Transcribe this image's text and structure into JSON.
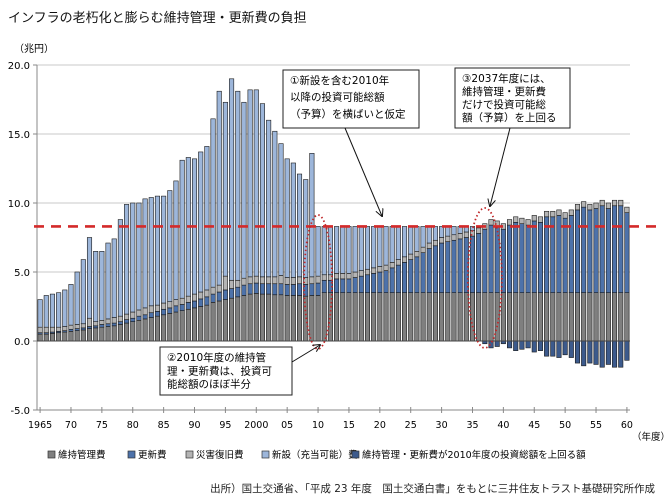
{
  "chart_data": {
    "type": "bar",
    "stacked": true,
    "title": "インフラの老朽化と膨らむ維持管理・更新費の負担",
    "ylabel": "（兆円）",
    "xlabel": "（年度）",
    "ylim": [
      -5,
      20
    ],
    "yticks": [
      "20.0",
      "15.0",
      "10.0",
      "5.0",
      "0.0",
      "-5.0"
    ],
    "ytick_values": [
      20,
      15,
      10,
      5,
      0,
      -5
    ],
    "x_start": 1965,
    "x_end": 2060,
    "xticks": [
      "1965",
      "70",
      "75",
      "80",
      "85",
      "90",
      "95",
      "2000",
      "05",
      "10",
      "15",
      "20",
      "25",
      "30",
      "35",
      "40",
      "45",
      "50",
      "55",
      "60"
    ],
    "grid": true,
    "legend_position": "bottom",
    "budget_line": 8.3,
    "budget_color": "#d42a2a",
    "series": [
      {
        "name": "維持管理費",
        "color": "#7f7f7f",
        "values": [
          0.5,
          0.5,
          0.55,
          0.6,
          0.65,
          0.7,
          0.75,
          0.8,
          0.9,
          0.95,
          1.0,
          1.05,
          1.1,
          1.2,
          1.3,
          1.4,
          1.5,
          1.6,
          1.7,
          1.8,
          1.9,
          2.0,
          2.1,
          2.2,
          2.3,
          2.4,
          2.5,
          2.6,
          2.8,
          2.9,
          3.0,
          3.1,
          3.2,
          3.3,
          3.4,
          3.45,
          3.4,
          3.4,
          3.35,
          3.35,
          3.3,
          3.3,
          3.3,
          3.25,
          3.3,
          3.3,
          3.5,
          3.5,
          3.5,
          3.5,
          3.5,
          3.5,
          3.5,
          3.5,
          3.5,
          3.5,
          3.5,
          3.5,
          3.5,
          3.5,
          3.5,
          3.5,
          3.5,
          3.5,
          3.5,
          3.5,
          3.5,
          3.5,
          3.5,
          3.5,
          3.5,
          3.5,
          3.5,
          3.5,
          3.5,
          3.5,
          3.5,
          3.5,
          3.5,
          3.5,
          3.5,
          3.5,
          3.5,
          3.5,
          3.5,
          3.5,
          3.5,
          3.5,
          3.5,
          3.5,
          3.5,
          3.5,
          3.5,
          3.5,
          3.5,
          3.5
        ]
      },
      {
        "name": "更新費",
        "color": "#4d72aa",
        "values": [
          0.1,
          0.1,
          0.1,
          0.1,
          0.1,
          0.15,
          0.15,
          0.15,
          0.15,
          0.15,
          0.2,
          0.2,
          0.2,
          0.2,
          0.25,
          0.25,
          0.3,
          0.3,
          0.35,
          0.35,
          0.4,
          0.4,
          0.45,
          0.45,
          0.5,
          0.5,
          0.55,
          0.6,
          0.6,
          0.65,
          0.7,
          0.7,
          0.7,
          0.75,
          0.75,
          0.75,
          0.75,
          0.75,
          0.8,
          0.8,
          0.8,
          0.8,
          0.85,
          0.85,
          0.85,
          0.9,
          0.9,
          0.9,
          1.0,
          1.0,
          1.0,
          1.1,
          1.2,
          1.3,
          1.4,
          1.5,
          1.6,
          1.8,
          2.0,
          2.2,
          2.4,
          2.6,
          2.9,
          3.2,
          3.4,
          3.6,
          3.7,
          3.8,
          3.9,
          4.0,
          4.1,
          4.3,
          4.6,
          4.9,
          4.8,
          4.6,
          4.9,
          5.1,
          5.0,
          4.9,
          5.2,
          5.1,
          5.5,
          5.5,
          5.6,
          5.4,
          5.6,
          6.0,
          6.2,
          6.0,
          6.1,
          6.3,
          6.1,
          6.3,
          6.3,
          5.8
        ]
      },
      {
        "name": "災害復旧費",
        "color": "#b4b4b4",
        "values": [
          0.4,
          0.4,
          0.35,
          0.3,
          0.3,
          0.3,
          0.3,
          0.3,
          0.6,
          0.3,
          0.3,
          0.35,
          0.4,
          0.4,
          0.4,
          0.45,
          0.45,
          0.5,
          0.5,
          0.45,
          0.45,
          0.45,
          0.45,
          0.45,
          0.45,
          0.5,
          0.5,
          0.5,
          0.5,
          0.5,
          1.0,
          0.6,
          0.5,
          0.5,
          0.5,
          0.5,
          0.5,
          0.5,
          0.5,
          0.6,
          0.5,
          0.5,
          0.5,
          0.5,
          0.5,
          0.5,
          0.4,
          0.4,
          0.4,
          0.4,
          0.4,
          0.4,
          0.4,
          0.4,
          0.4,
          0.4,
          0.4,
          0.4,
          0.4,
          0.4,
          0.4,
          0.4,
          0.4,
          0.4,
          0.4,
          0.4,
          0.4,
          0.4,
          0.4,
          0.4,
          0.4,
          0.4,
          0.4,
          0.4,
          0.4,
          0.4,
          0.4,
          0.4,
          0.4,
          0.4,
          0.4,
          0.4,
          0.4,
          0.4,
          0.4,
          0.4,
          0.4,
          0.4,
          0.4,
          0.4,
          0.4,
          0.4,
          0.4,
          0.4,
          0.4,
          0.4
        ]
      },
      {
        "name": "新設（充当可能）費",
        "color": "#9db6da",
        "values": [
          2.0,
          2.3,
          2.4,
          2.5,
          2.65,
          2.95,
          3.8,
          4.65,
          5.85,
          5.1,
          5.0,
          5.5,
          5.7,
          7.0,
          7.95,
          7.9,
          7.75,
          7.9,
          7.85,
          7.9,
          7.75,
          8.05,
          8.6,
          10.0,
          10.05,
          9.8,
          10.15,
          10.4,
          12.2,
          14.05,
          12.6,
          14.6,
          13.7,
          12.75,
          13.55,
          13.5,
          12.55,
          11.35,
          10.55,
          9.55,
          8.6,
          8.3,
          7.45,
          7.1,
          8.95,
          3.6,
          3.5,
          3.5,
          3.4,
          3.4,
          3.4,
          3.3,
          3.2,
          3.1,
          3.0,
          2.9,
          2.8,
          2.6,
          2.4,
          2.2,
          2.0,
          1.8,
          1.5,
          1.2,
          1.0,
          0.8,
          0.7,
          0.6,
          0.5,
          0.4,
          0.3,
          0.1,
          0,
          0,
          0,
          0,
          0,
          0,
          0,
          0,
          0,
          0,
          0,
          0,
          0,
          0,
          0,
          0,
          0,
          0,
          0,
          0,
          0,
          0,
          0,
          0
        ]
      },
      {
        "name": "維持管理・更新費が2010年度の投資総額を上回る額",
        "color": "#3c5a8c",
        "values": [
          0,
          0,
          0,
          0,
          0,
          0,
          0,
          0,
          0,
          0,
          0,
          0,
          0,
          0,
          0,
          0,
          0,
          0,
          0,
          0,
          0,
          0,
          0,
          0,
          0,
          0,
          0,
          0,
          0,
          0,
          0,
          0,
          0,
          0,
          0,
          0,
          0,
          0,
          0,
          0,
          0,
          0,
          0,
          0,
          0,
          0,
          0,
          0,
          0,
          0,
          0,
          0,
          0,
          0,
          0,
          0,
          0,
          0,
          0,
          0,
          0,
          0,
          0,
          0,
          0,
          0,
          0,
          0,
          0,
          0,
          0,
          0,
          -0.2,
          -0.5,
          -0.4,
          -0.2,
          -0.5,
          -0.7,
          -0.6,
          -0.5,
          -0.8,
          -0.7,
          -1.1,
          -1.1,
          -1.2,
          -1.0,
          -1.2,
          -1.6,
          -1.8,
          -1.6,
          -1.7,
          -1.9,
          -1.7,
          -1.9,
          -1.9,
          -1.4
        ]
      }
    ],
    "annotations": [
      {
        "lines": [
          "①新設を含む2010年",
          "以降の投資可能総額",
          "（予算）を横ばいと仮定"
        ]
      },
      {
        "lines": [
          "②2010年度の維持管",
          "理・更新費は、投資可",
          "能総額のほぼ半分"
        ]
      },
      {
        "lines": [
          "③2037年度には、",
          "維持管理・更新費",
          "だけで投資可能総",
          "額（予算）を上回る"
        ]
      }
    ]
  },
  "source": "出所）国土交通省、「平成 23 年度　国土交通白書」をもとに三井住友トラスト基礎研究所作成"
}
